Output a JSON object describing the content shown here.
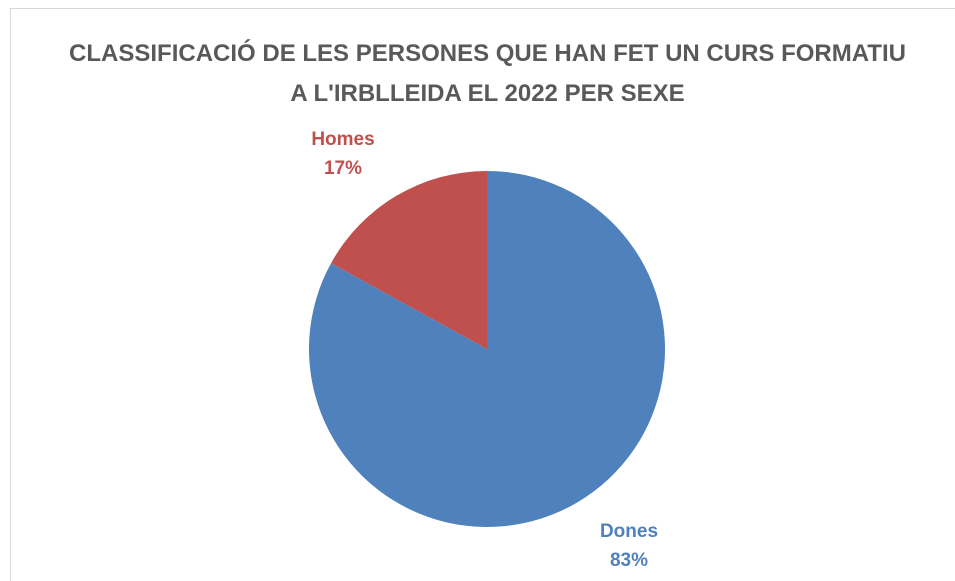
{
  "chart_data": {
    "type": "pie",
    "title": "CLASSIFICACIÓ DE LES PERSONES QUE HAN FET UN CURS FORMATIU A L'IRBLLEIDA EL 2022 PER SEXE",
    "categories": [
      "Dones",
      "Homes"
    ],
    "values": [
      83,
      17
    ],
    "value_labels": [
      "83%",
      "17%"
    ],
    "colors": [
      "#4f81bd",
      "#c0504d"
    ]
  }
}
